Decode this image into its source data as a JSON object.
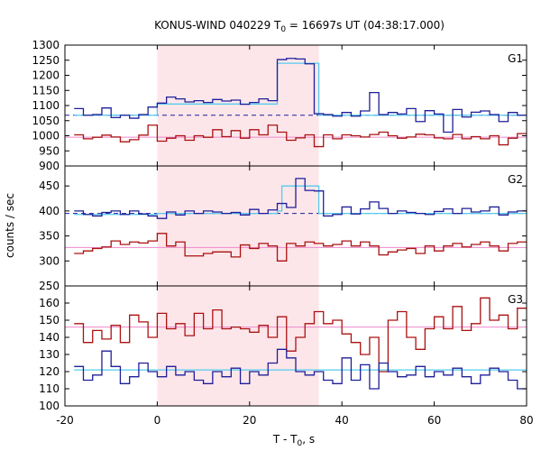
{
  "chart_data": {
    "type": "line",
    "title_main": "KONUS-WIND 040229 T",
    "title_sub": "0",
    "title_rest": " = 16697s UT (04:38:17.000)",
    "xlabel_main": "T - T",
    "xlabel_sub": "0",
    "xlabel_rest": ", s",
    "ylabel": "counts / sec",
    "xlim": [
      -20,
      80
    ],
    "x_ticks": [
      "-20",
      "0",
      "20",
      "40",
      "60",
      "80"
    ],
    "shaded_interval": [
      0,
      35
    ],
    "colors": {
      "shade": "#fde6ea",
      "blue": "#1f1f99",
      "cyan": "#55ccee",
      "red": "#aa1111",
      "pink": "#ee88cc",
      "dashed": "#1f1f99"
    },
    "panels": [
      {
        "label": "G1",
        "ylim": [
          900,
          1300
        ],
        "yticks": [
          "900",
          "950",
          "1000",
          "1050",
          "1100",
          "1150",
          "1200",
          "1250",
          "1300"
        ],
        "blue": {
          "x": [
            -18,
            -16,
            -14,
            -12,
            -10,
            -8,
            -6,
            -4,
            -2,
            0,
            2,
            4,
            6,
            8,
            10,
            12,
            14,
            16,
            18,
            20,
            22,
            24,
            26,
            28,
            30,
            32,
            34,
            36,
            38,
            40,
            42,
            44,
            46,
            48,
            50,
            52,
            54,
            56,
            58,
            60,
            62,
            64,
            66,
            68,
            70,
            72,
            74,
            76,
            78
          ],
          "y": [
            1090,
            1068,
            1070,
            1092,
            1060,
            1068,
            1058,
            1070,
            1095,
            1108,
            1128,
            1122,
            1112,
            1116,
            1110,
            1120,
            1115,
            1118,
            1104,
            1110,
            1122,
            1116,
            1252,
            1256,
            1254,
            1238,
            1073,
            1070,
            1065,
            1077,
            1065,
            1082,
            1143,
            1070,
            1077,
            1072,
            1090,
            1047,
            1083,
            1072,
            1012,
            1087,
            1062,
            1078,
            1082,
            1070,
            1047,
            1077,
            1068
          ]
        },
        "model_blue": {
          "x": [
            -18,
            0,
            26,
            35,
            80
          ],
          "y": [
            1068,
            1105,
            1240,
            1068,
            1068
          ]
        },
        "background_blue": 1068,
        "red": {
          "x": [
            -18,
            -16,
            -14,
            -12,
            -10,
            -8,
            -6,
            -4,
            -2,
            0,
            2,
            4,
            6,
            8,
            10,
            12,
            14,
            16,
            18,
            20,
            22,
            24,
            26,
            28,
            30,
            32,
            34,
            36,
            38,
            40,
            42,
            44,
            46,
            48,
            50,
            52,
            54,
            56,
            58,
            60,
            62,
            64,
            66,
            68,
            70,
            72,
            74,
            76,
            78
          ],
          "y": [
            1003,
            990,
            995,
            1002,
            996,
            980,
            987,
            1002,
            1035,
            982,
            992,
            1000,
            985,
            1000,
            995,
            1020,
            997,
            1017,
            992,
            1020,
            1003,
            1035,
            1012,
            985,
            993,
            1003,
            964,
            1003,
            990,
            1003,
            1000,
            996,
            1004,
            1012,
            1000,
            992,
            996,
            1005,
            1003,
            993,
            990,
            1004,
            990,
            997,
            990,
            1000,
            970,
            992,
            1007
          ]
        },
        "background_red": 995
      },
      {
        "label": "G2",
        "ylim": [
          250,
          490
        ],
        "yticks": [
          "250",
          "300",
          "350",
          "400",
          "450"
        ],
        "blue": {
          "x": [
            -18,
            -16,
            -14,
            -12,
            -10,
            -8,
            -6,
            -4,
            -2,
            0,
            2,
            4,
            6,
            8,
            10,
            12,
            14,
            16,
            18,
            20,
            22,
            24,
            26,
            28,
            30,
            32,
            34,
            36,
            38,
            40,
            42,
            44,
            46,
            48,
            50,
            52,
            54,
            56,
            58,
            60,
            62,
            64,
            66,
            68,
            70,
            72,
            74,
            76,
            78
          ],
          "y": [
            400,
            393,
            390,
            397,
            400,
            393,
            400,
            394,
            390,
            385,
            398,
            392,
            400,
            395,
            400,
            398,
            395,
            397,
            392,
            403,
            395,
            402,
            415,
            407,
            465,
            441,
            440,
            390,
            393,
            408,
            394,
            404,
            418,
            405,
            395,
            400,
            397,
            395,
            393,
            399,
            404,
            395,
            405,
            398,
            400,
            408,
            392,
            398,
            400
          ]
        },
        "model_blue": {
          "x": [
            -18,
            0,
            26,
            27,
            35,
            80
          ],
          "y": [
            393,
            395,
            400,
            450,
            395,
            395
          ]
        },
        "background_blue": 395,
        "red": {
          "x": [
            -18,
            -16,
            -14,
            -12,
            -10,
            -8,
            -6,
            -4,
            -2,
            0,
            2,
            4,
            6,
            8,
            10,
            12,
            14,
            16,
            18,
            20,
            22,
            24,
            26,
            28,
            30,
            32,
            34,
            36,
            38,
            40,
            42,
            44,
            46,
            48,
            50,
            52,
            54,
            56,
            58,
            60,
            62,
            64,
            66,
            68,
            70,
            72,
            74,
            76,
            78
          ],
          "y": [
            315,
            320,
            325,
            328,
            340,
            333,
            338,
            336,
            340,
            355,
            330,
            338,
            310,
            310,
            315,
            318,
            318,
            308,
            332,
            325,
            335,
            330,
            300,
            335,
            330,
            338,
            335,
            330,
            333,
            340,
            330,
            338,
            330,
            312,
            318,
            322,
            325,
            315,
            330,
            320,
            330,
            335,
            328,
            333,
            338,
            330,
            320,
            335,
            338
          ]
        },
        "background_red": 327
      },
      {
        "label": "G3",
        "ylim": [
          100,
          170
        ],
        "yticks": [
          "100",
          "110",
          "120",
          "130",
          "140",
          "150",
          "160"
        ],
        "blue": {
          "x": [
            -18,
            -16,
            -14,
            -12,
            -10,
            -8,
            -6,
            -4,
            -2,
            0,
            2,
            4,
            6,
            8,
            10,
            12,
            14,
            16,
            18,
            20,
            22,
            24,
            26,
            28,
            30,
            32,
            34,
            36,
            38,
            40,
            42,
            44,
            46,
            48,
            50,
            52,
            54,
            56,
            58,
            60,
            62,
            64,
            66,
            68,
            70,
            72,
            74,
            76,
            78
          ],
          "y": [
            123,
            115,
            118,
            132,
            123,
            113,
            117,
            125,
            120,
            117,
            123,
            118,
            120,
            115,
            113,
            120,
            117,
            122,
            113,
            120,
            118,
            125,
            133,
            128,
            120,
            118,
            120,
            115,
            113,
            128,
            115,
            124,
            110,
            125,
            120,
            117,
            118,
            123,
            117,
            120,
            118,
            122,
            117,
            113,
            118,
            122,
            120,
            115,
            110
          ]
        },
        "model_blue": {
          "x": [
            -18,
            80
          ],
          "y": [
            121,
            121
          ]
        },
        "background_blue": 121,
        "red": {
          "x": [
            -18,
            -16,
            -14,
            -12,
            -10,
            -8,
            -6,
            -4,
            -2,
            0,
            2,
            4,
            6,
            8,
            10,
            12,
            14,
            16,
            18,
            20,
            22,
            24,
            26,
            28,
            30,
            32,
            34,
            36,
            38,
            40,
            42,
            44,
            46,
            48,
            50,
            52,
            54,
            56,
            58,
            60,
            62,
            64,
            66,
            68,
            70,
            72,
            74,
            76,
            78
          ],
          "y": [
            148,
            137,
            144,
            139,
            147,
            137,
            153,
            149,
            140,
            154,
            145,
            148,
            141,
            154,
            145,
            156,
            145,
            146,
            145,
            143,
            147,
            140,
            152,
            132,
            140,
            148,
            155,
            148,
            150,
            142,
            137,
            130,
            140,
            120,
            150,
            155,
            140,
            133,
            145,
            152,
            145,
            158,
            144,
            148,
            163,
            150,
            153,
            145,
            157
          ]
        },
        "background_red": 146
      }
    ]
  }
}
